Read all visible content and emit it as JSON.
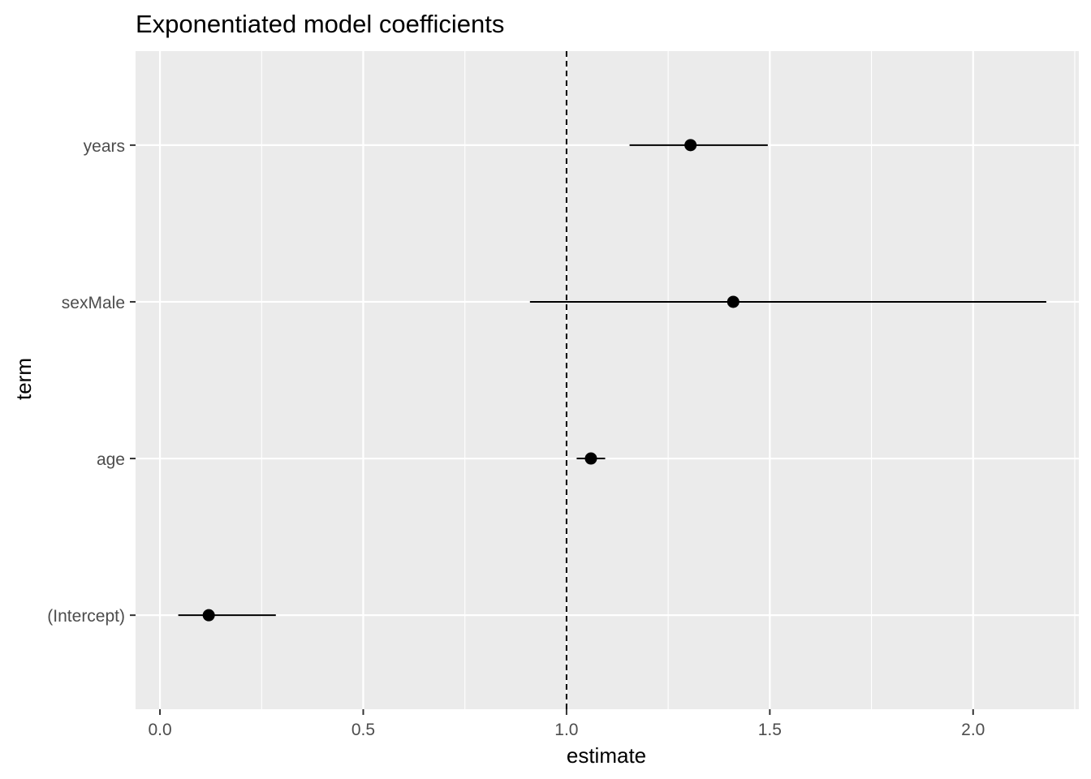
{
  "chart_data": {
    "type": "scatter",
    "title": "Exponentiated model coefficients",
    "xlabel": "estimate",
    "ylabel": "term",
    "xlim": [
      -0.06,
      2.26
    ],
    "x_ticks": [
      0.0,
      0.5,
      1.0,
      1.5,
      2.0
    ],
    "x_tick_labels": [
      "0.0",
      "0.5",
      "1.0",
      "1.5",
      "2.0"
    ],
    "categories": [
      "(Intercept)",
      "age",
      "sexMale",
      "years"
    ],
    "points": [
      {
        "term": "(Intercept)",
        "estimate": 0.12,
        "conf_low": 0.045,
        "conf_high": 0.285
      },
      {
        "term": "age",
        "estimate": 1.06,
        "conf_low": 1.025,
        "conf_high": 1.095
      },
      {
        "term": "sexMale",
        "estimate": 1.41,
        "conf_low": 0.91,
        "conf_high": 2.18
      },
      {
        "term": "years",
        "estimate": 1.305,
        "conf_low": 1.155,
        "conf_high": 1.495
      }
    ],
    "reference_line": {
      "x": 1.0,
      "style": "dashed"
    },
    "grid": true,
    "legend": "none",
    "colors": {
      "panel": "#ebebeb",
      "grid": "#ffffff",
      "marks": "#000000",
      "tick_text": "#4d4d4d"
    }
  }
}
